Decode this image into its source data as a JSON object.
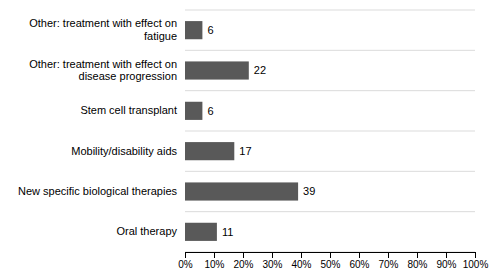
{
  "chart_data": {
    "type": "bar",
    "orientation": "horizontal",
    "categories": [
      "Oral therapy",
      "New specific biological therapies",
      "Mobility/disability aids",
      "Stem cell transplant",
      "Other: treatment with effect on\ndisease progression",
      "Other: treatment with effect on\nfatigue"
    ],
    "values": [
      11,
      39,
      17,
      6,
      22,
      6
    ],
    "color": "#595959",
    "xlim": [
      0,
      100
    ],
    "xticks": [
      {
        "value": 0,
        "label": "0%"
      },
      {
        "value": 10,
        "label": "10%"
      },
      {
        "value": 20,
        "label": "20%"
      },
      {
        "value": 30,
        "label": "30%"
      },
      {
        "value": 40,
        "label": "40%"
      },
      {
        "value": 50,
        "label": "50%"
      },
      {
        "value": 60,
        "label": "60%"
      },
      {
        "value": 70,
        "label": "70%"
      },
      {
        "value": 80,
        "label": "80%"
      },
      {
        "value": 90,
        "label": "90%"
      },
      {
        "value": 100,
        "label": "100%"
      }
    ],
    "data_labels": true
  }
}
